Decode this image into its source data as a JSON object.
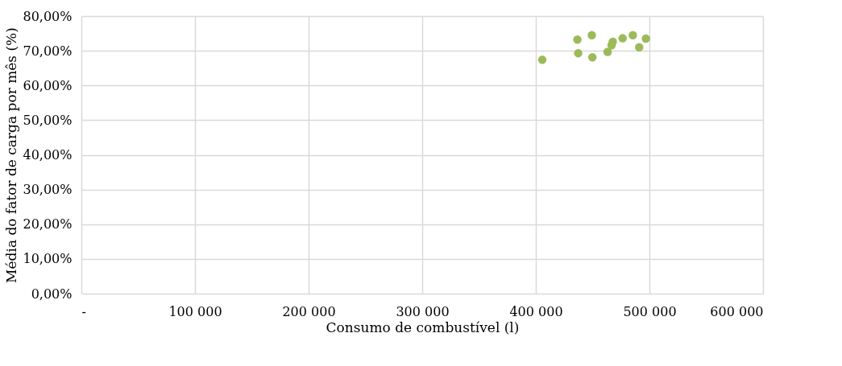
{
  "chart_data": {
    "type": "scatter",
    "xlabel": "Consumo de combustível (l)",
    "ylabel": "Média do fator de carga por mês (%)",
    "x": [
      405700,
      436600,
      437300,
      449300,
      449800,
      463200,
      466700,
      467700,
      476400,
      485400,
      491000,
      496900
    ],
    "series": [
      {
        "color": "#9bbb59",
        "values": [
          67.4,
          73.2,
          69.3,
          74.5,
          68.1,
          69.7,
          71.6,
          72.6,
          73.6,
          74.5,
          71.0,
          73.5
        ]
      }
    ],
    "xlim": [
      0,
      600000
    ],
    "ylim": [
      0,
      80
    ],
    "xticks": [
      {
        "value": 0,
        "label": "-"
      },
      {
        "value": 100000,
        "label": "100 000"
      },
      {
        "value": 200000,
        "label": "200 000"
      },
      {
        "value": 300000,
        "label": "300 000"
      },
      {
        "value": 400000,
        "label": "400 000"
      },
      {
        "value": 500000,
        "label": "500 000"
      },
      {
        "value": 600000,
        "label": "600 000"
      }
    ],
    "yticks": [
      {
        "value": 0,
        "label": "0,00%"
      },
      {
        "value": 10,
        "label": "10,00%"
      },
      {
        "value": 20,
        "label": "20,00%"
      },
      {
        "value": 30,
        "label": "30,00%"
      },
      {
        "value": 40,
        "label": "40,00%"
      },
      {
        "value": 50,
        "label": "50,00%"
      },
      {
        "value": 60,
        "label": "60,00%"
      },
      {
        "value": 70,
        "label": "70,00%"
      },
      {
        "value": 80,
        "label": "80,00%"
      }
    ],
    "grid": true,
    "marker": "circle",
    "legend": false
  }
}
